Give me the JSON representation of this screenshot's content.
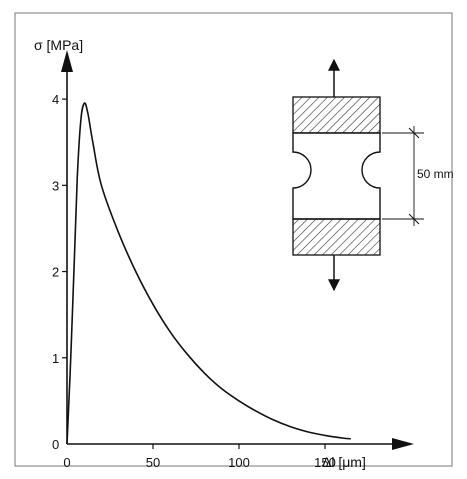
{
  "chart_data": {
    "type": "line",
    "ylabel": "σ [MPa]",
    "xlabel": "Δl [μm]",
    "xlim": [
      0,
      200
    ],
    "ylim": [
      0,
      4.5
    ],
    "x_ticks": [
      0,
      50,
      100,
      150
    ],
    "y_ticks": [
      0,
      1,
      2,
      3,
      4
    ],
    "grid": false,
    "legend": "none",
    "series": [
      {
        "points": [
          [
            0,
            0
          ],
          [
            2,
            0.9
          ],
          [
            4,
            2.0
          ],
          [
            6,
            3.1
          ],
          [
            8,
            3.75
          ],
          [
            10,
            3.95
          ],
          [
            12,
            3.85
          ],
          [
            15,
            3.5
          ],
          [
            20,
            3.0
          ],
          [
            30,
            2.45
          ],
          [
            40,
            2.0
          ],
          [
            50,
            1.62
          ],
          [
            60,
            1.3
          ],
          [
            70,
            1.04
          ],
          [
            80,
            0.82
          ],
          [
            90,
            0.64
          ],
          [
            100,
            0.5
          ],
          [
            110,
            0.38
          ],
          [
            120,
            0.28
          ],
          [
            130,
            0.2
          ],
          [
            140,
            0.14
          ],
          [
            150,
            0.1
          ],
          [
            160,
            0.07
          ],
          [
            165,
            0.06
          ]
        ]
      }
    ],
    "annotations": {
      "dimension_label": "50 mm"
    }
  },
  "colors": {
    "ink": "#111111",
    "hatch": "#333333",
    "frame": "#555555",
    "background": "#ffffff"
  }
}
